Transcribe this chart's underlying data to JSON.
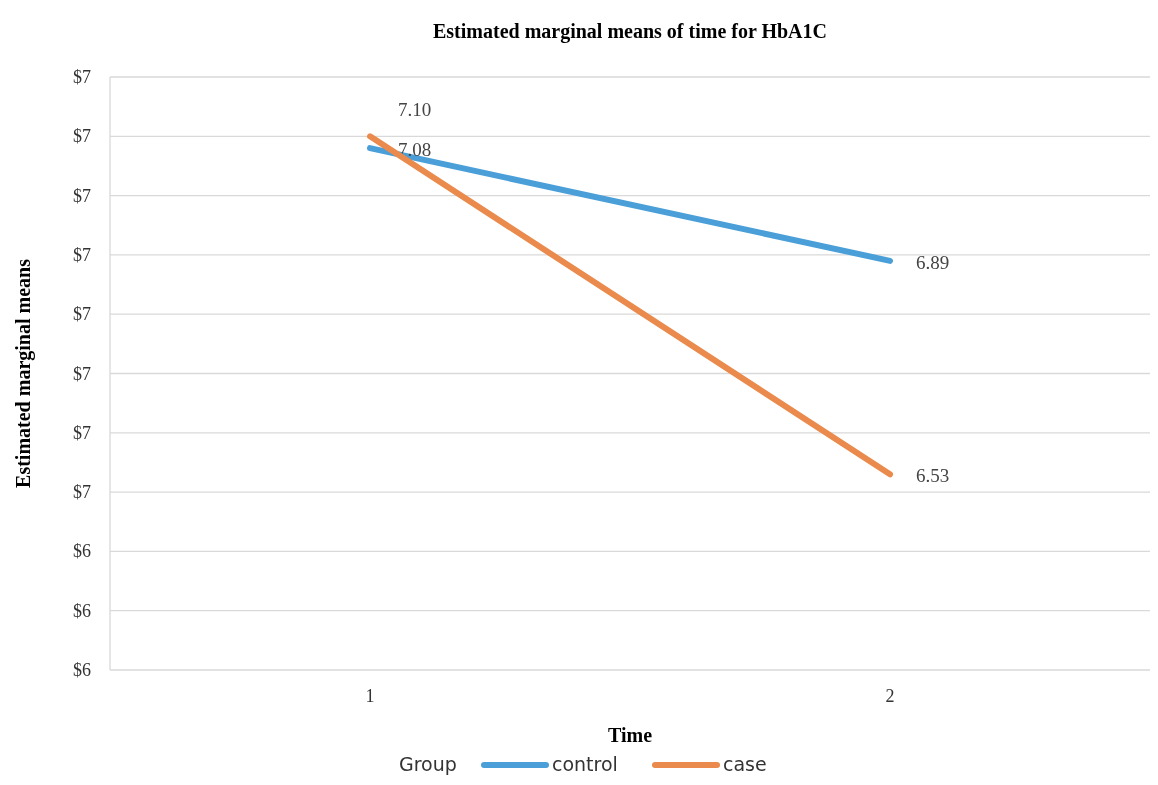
{
  "chart_data": {
    "type": "line",
    "title": "Estimated marginal means of time for HbA1C",
    "xlabel": "Time",
    "ylabel": "Estimated marginal means",
    "legend_title": "Group",
    "categories": [
      "1",
      "2"
    ],
    "series": [
      {
        "name": "control",
        "color": "#4a9fd8",
        "values": [
          7.08,
          6.89
        ],
        "value_labels": [
          "7.08",
          "6.89"
        ]
      },
      {
        "name": "case",
        "color": "#ea8a4c",
        "values": [
          7.1,
          6.53
        ],
        "value_labels": [
          "7.10",
          "6.53"
        ]
      }
    ],
    "ylim": [
      6.2,
      7.2
    ],
    "yticks": [
      {
        "value": 6.2,
        "label": "$6"
      },
      {
        "value": 6.3,
        "label": "$6"
      },
      {
        "value": 6.4,
        "label": "$6"
      },
      {
        "value": 6.5,
        "label": "$7"
      },
      {
        "value": 6.6,
        "label": "$7"
      },
      {
        "value": 6.7,
        "label": "$7"
      },
      {
        "value": 6.8,
        "label": "$7"
      },
      {
        "value": 6.9,
        "label": "$7"
      },
      {
        "value": 7.0,
        "label": "$7"
      },
      {
        "value": 7.1,
        "label": "$7"
      },
      {
        "value": 7.2,
        "label": "$7"
      }
    ],
    "grid": "y",
    "legend": "bottom",
    "marker": "none",
    "line_style": "solid"
  }
}
